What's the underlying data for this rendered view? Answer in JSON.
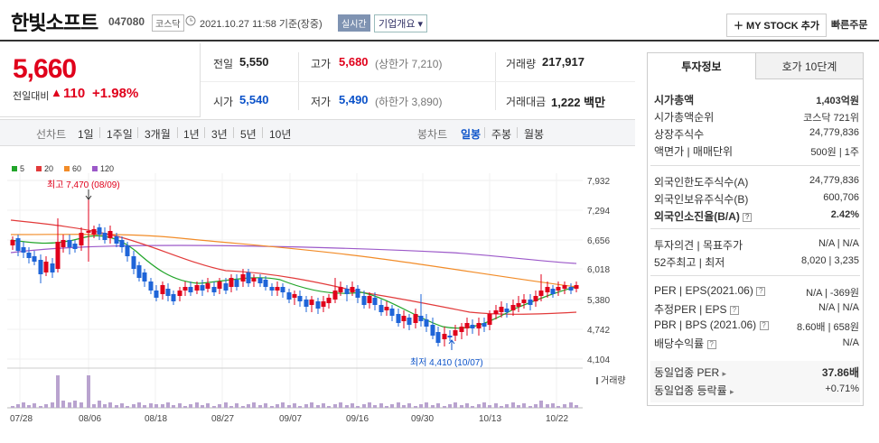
{
  "header": {
    "stock_name": "한빛소프트",
    "stock_code": "047080",
    "market": "코스닥",
    "time": "2021.10.27 11:58 기준(장중)",
    "realtime_label": "실시간",
    "company_info_label": "기업개요 ▾",
    "mystock_label": "＋ MY STOCK 추가",
    "quick_order_label": "빠른주문"
  },
  "price": {
    "current": "5,660",
    "change_label": "전일대비",
    "change_arrow": "▲",
    "change_value": "110",
    "change_rate": "+1.98%"
  },
  "quote": {
    "prev_close_label": "전일",
    "prev_close": "5,550",
    "high_label": "고가",
    "high": "5,680",
    "upper_limit": "(상한가 7,210)",
    "volume_label": "거래량",
    "volume": "217,917",
    "open_label": "시가",
    "open": "5,540",
    "low_label": "저가",
    "low": "5,490",
    "lower_limit": "(하한가 3,890)",
    "amount_label": "거래대금",
    "amount": "1,222 백만"
  },
  "periods": {
    "line_label": "선차트",
    "line_items": [
      "1일",
      "1주일",
      "3개월",
      "1년",
      "3년",
      "5년",
      "10년"
    ],
    "candle_label": "봉차트",
    "candle_items": [
      "일봉",
      "주봉",
      "월봉"
    ],
    "selected": "일봉"
  },
  "chart": {
    "legend": [
      "5",
      "20",
      "60",
      "120"
    ],
    "legend_colors": [
      "#22a52a",
      "#e23a3a",
      "#f28c28",
      "#9c59c9"
    ],
    "y_ticks": [
      "7,932",
      "7,294",
      "6,656",
      "6,018",
      "5,380",
      "4,742",
      "4,104"
    ],
    "x_ticks": [
      "07/28",
      "08/06",
      "08/18",
      "08/27",
      "09/07",
      "09/16",
      "09/30",
      "10/13",
      "10/22"
    ],
    "high_annotation": "최고 7,470 (08/09)",
    "low_annotation": "최저 4,410 (10/07)",
    "volume_label": "거래량",
    "up_color": "#e0001b",
    "down_color": "#1e64d8"
  },
  "right_panel": {
    "tab_invest": "투자정보",
    "tab_quote": "호가 10단계",
    "rows1": [
      {
        "label": "시가총액",
        "value": "1,403억원"
      },
      {
        "label": "시가총액순위",
        "value": "코스닥 721위"
      },
      {
        "label": "상장주식수",
        "value": "24,779,836"
      },
      {
        "label": "액면가 | 매매단위",
        "value": "500원 | 1주"
      }
    ],
    "rows2": [
      {
        "label": "외국인한도주식수(A)",
        "value": "24,779,836"
      },
      {
        "label": "외국인보유주식수(B)",
        "value": "600,706"
      },
      {
        "label": "외국인소진율(B/A)",
        "value": "2.42%"
      }
    ],
    "rows3": [
      {
        "label": "투자의견 | 목표주가",
        "value": "N/A | N/A"
      },
      {
        "label": "52주최고 | 최저",
        "value": "8,020 | 3,235"
      }
    ],
    "rows4": [
      {
        "label": "PER | EPS(2021.06)",
        "value": "N/A | -369원"
      },
      {
        "label": "추정PER | EPS",
        "value": "N/A | N/A"
      },
      {
        "label": "PBR | BPS (2021.06)",
        "value": "8.60배 | 658원"
      },
      {
        "label": "배당수익률",
        "value": "N/A"
      }
    ],
    "rows5": [
      {
        "label": "동일업종 PER",
        "value": "37.86배"
      },
      {
        "label": "동일업종 등락률",
        "value": "+0.71%"
      }
    ]
  }
}
